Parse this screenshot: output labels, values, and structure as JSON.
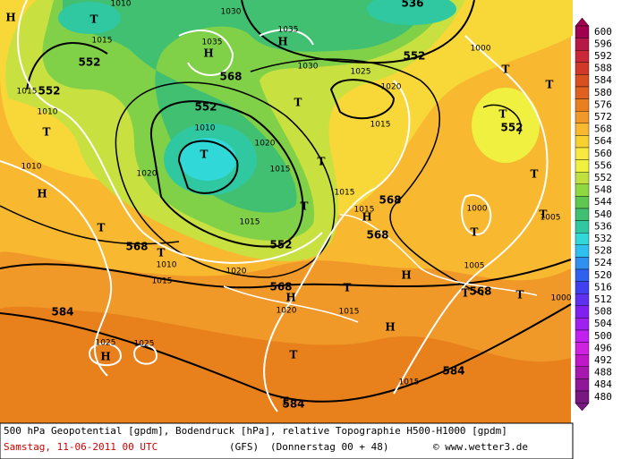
{
  "map": {
    "labels": [
      "552",
      "552",
      "552",
      "552",
      "552",
      "552",
      "568",
      "568",
      "568",
      "568",
      "568",
      "568",
      "584",
      "584",
      "584",
      "536",
      "H",
      "H",
      "H",
      "H",
      "H",
      "H",
      "H",
      "H",
      "H",
      "T",
      "T",
      "T",
      "T",
      "T",
      "T",
      "T",
      "T",
      "T",
      "T",
      "T",
      "T",
      "T",
      "T",
      "T",
      "T",
      "T",
      "T",
      "T",
      "1010",
      "1015",
      "1035",
      "1035",
      "1030",
      "1030",
      "1025",
      "1020",
      "1015",
      "1000",
      "1015",
      "1010",
      "1010",
      "1010",
      "1020",
      "1015",
      "1020",
      "1015",
      "1015",
      "1015",
      "1000",
      "1005",
      "1005",
      "1010",
      "1015",
      "1020",
      "1020",
      "1015",
      "1025",
      "1025",
      "1015",
      "1000"
    ]
  },
  "scale": {
    "levels": [
      600,
      596,
      592,
      588,
      584,
      580,
      576,
      572,
      568,
      564,
      560,
      556,
      552,
      548,
      544,
      540,
      536,
      532,
      528,
      524,
      520,
      516,
      512,
      508,
      504,
      500,
      496,
      492,
      488,
      484,
      480
    ],
    "colors": [
      "#a0004e",
      "#b81848",
      "#c82838",
      "#d03828",
      "#d85020",
      "#e06020",
      "#e88020",
      "#f09828",
      "#f8b830",
      "#f8d030",
      "#f8e840",
      "#f0f040",
      "#c0e040",
      "#90d840",
      "#60c850",
      "#40c070",
      "#30c8a0",
      "#30d8d8",
      "#30c0f0",
      "#3090f0",
      "#3060f0",
      "#4040f0",
      "#6030f0",
      "#8020f0",
      "#a020f0",
      "#c020f0",
      "#d020e0",
      "#c018c8",
      "#a818b0",
      "#901898",
      "#781880"
    ]
  },
  "footer": {
    "description": "500 hPa Geopotential [gpdm], Bodendruck [hPa], relative Topographie H500-H1000 [gpdm]",
    "date": "Samstag, 11-06-2011  00 UTC",
    "model": "(GFS)",
    "run": "(Donnerstag 00 + 48)",
    "copyright": "© www.wetter3.de"
  }
}
